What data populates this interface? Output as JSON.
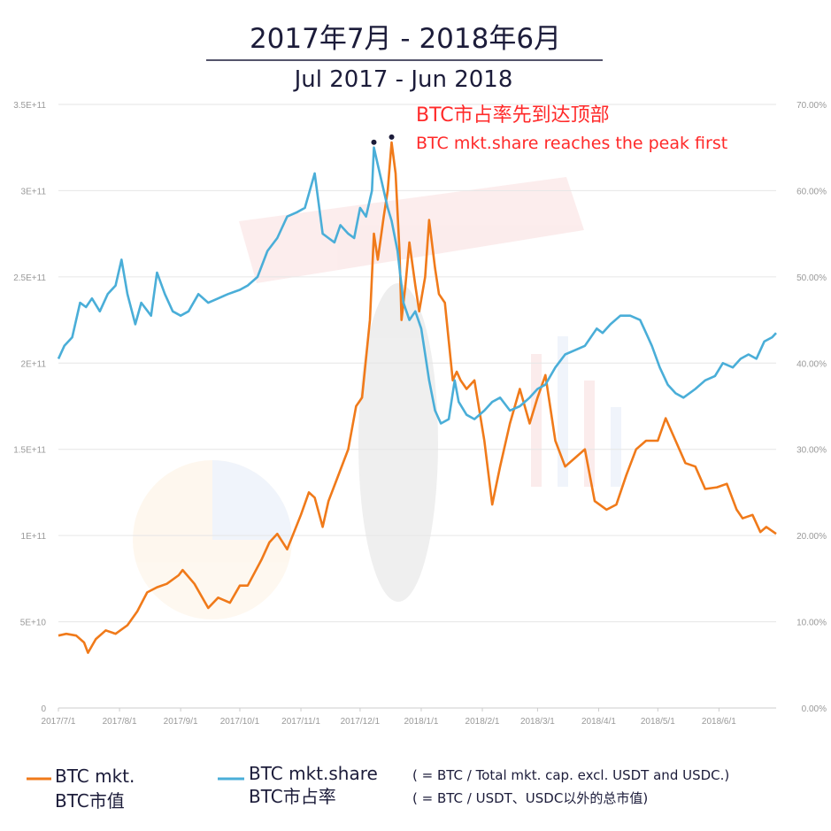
{
  "title": "2017年7月 - 2018年6月",
  "subtitle": "Jul 2017 - Jun 2018",
  "annotation": {
    "cn": "BTC市占率先到达顶部",
    "en": "BTC mkt.share reaches the peak first",
    "color": "#ff2a2a"
  },
  "legend": {
    "cap_line1": "BTC mkt.",
    "cap_line2": "BTC市值",
    "share_line1": "BTC mkt.share",
    "share_line2": "BTC市占率",
    "note_en": "( = BTC / Total mkt. cap. excl. USDT and USDC.)",
    "note_cn": "( = BTC / USDT、USDC以外的总市值)"
  },
  "colors": {
    "market_cap": "#f07a1a",
    "market_share": "#4aaed8",
    "grid": "#e6e6e6",
    "tick": "#999999",
    "title": "#1c1c3a"
  },
  "chart_data": {
    "type": "line",
    "x_range": [
      "2017-07-01",
      "2018-06-30"
    ],
    "x_ticks": [
      "2017/7/1",
      "2017/8/1",
      "2017/9/1",
      "2017/10/1",
      "2017/11/1",
      "2017/12/1",
      "2018/1/1",
      "2018/2/1",
      "2018/3/1",
      "2018/4/1",
      "2018/5/1",
      "2018/6/1"
    ],
    "y_left": {
      "range": [
        0,
        350000000000
      ],
      "ticks": [
        "0",
        "5E+10",
        "1E+11",
        "1.5E+11",
        "2E+11",
        "2.5E+11",
        "3E+11",
        "3.5E+11"
      ]
    },
    "y_right": {
      "range": [
        0,
        0.7
      ],
      "ticks": [
        "0.00%",
        "10.00%",
        "20.00%",
        "30.00%",
        "40.00%",
        "50.00%",
        "60.00%",
        "70.00%"
      ]
    },
    "grid": true,
    "series": [
      {
        "name": "BTC mkt.",
        "axis": "left",
        "points": [
          [
            "2017-07-01",
            42000000000
          ],
          [
            "2017-07-05",
            43000000000
          ],
          [
            "2017-07-10",
            42000000000
          ],
          [
            "2017-07-14",
            38000000000
          ],
          [
            "2017-07-16",
            32000000000
          ],
          [
            "2017-07-20",
            40000000000
          ],
          [
            "2017-07-25",
            45000000000
          ],
          [
            "2017-07-30",
            43000000000
          ],
          [
            "2017-08-05",
            48000000000
          ],
          [
            "2017-08-10",
            56000000000
          ],
          [
            "2017-08-15",
            67000000000
          ],
          [
            "2017-08-20",
            70000000000
          ],
          [
            "2017-08-25",
            72000000000
          ],
          [
            "2017-08-31",
            77000000000
          ],
          [
            "2017-09-02",
            80000000000
          ],
          [
            "2017-09-08",
            72000000000
          ],
          [
            "2017-09-15",
            58000000000
          ],
          [
            "2017-09-20",
            64000000000
          ],
          [
            "2017-09-26",
            61000000000
          ],
          [
            "2017-10-01",
            71000000000
          ],
          [
            "2017-10-05",
            71000000000
          ],
          [
            "2017-10-12",
            86000000000
          ],
          [
            "2017-10-16",
            96000000000
          ],
          [
            "2017-10-20",
            101000000000
          ],
          [
            "2017-10-25",
            92000000000
          ],
          [
            "2017-11-01",
            112000000000
          ],
          [
            "2017-11-05",
            125000000000
          ],
          [
            "2017-11-08",
            122000000000
          ],
          [
            "2017-11-12",
            105000000000
          ],
          [
            "2017-11-15",
            120000000000
          ],
          [
            "2017-11-20",
            135000000000
          ],
          [
            "2017-11-25",
            150000000000
          ],
          [
            "2017-11-29",
            175000000000
          ],
          [
            "2017-12-02",
            180000000000
          ],
          [
            "2017-12-06",
            225000000000
          ],
          [
            "2017-12-08",
            275000000000
          ],
          [
            "2017-12-10",
            260000000000
          ],
          [
            "2017-12-13",
            285000000000
          ],
          [
            "2017-12-15",
            300000000000
          ],
          [
            "2017-12-17",
            328000000000
          ],
          [
            "2017-12-19",
            310000000000
          ],
          [
            "2017-12-21",
            265000000000
          ],
          [
            "2017-12-22",
            225000000000
          ],
          [
            "2017-12-24",
            245000000000
          ],
          [
            "2017-12-26",
            270000000000
          ],
          [
            "2017-12-29",
            245000000000
          ],
          [
            "2017-12-31",
            230000000000
          ],
          [
            "2018-01-03",
            250000000000
          ],
          [
            "2018-01-05",
            283000000000
          ],
          [
            "2018-01-08",
            255000000000
          ],
          [
            "2018-01-10",
            240000000000
          ],
          [
            "2018-01-13",
            235000000000
          ],
          [
            "2018-01-17",
            190000000000
          ],
          [
            "2018-01-19",
            195000000000
          ],
          [
            "2018-01-21",
            190000000000
          ],
          [
            "2018-01-24",
            185000000000
          ],
          [
            "2018-01-28",
            190000000000
          ],
          [
            "2018-02-02",
            155000000000
          ],
          [
            "2018-02-06",
            118000000000
          ],
          [
            "2018-02-10",
            140000000000
          ],
          [
            "2018-02-15",
            165000000000
          ],
          [
            "2018-02-20",
            185000000000
          ],
          [
            "2018-02-25",
            165000000000
          ],
          [
            "2018-03-01",
            180000000000
          ],
          [
            "2018-03-05",
            193000000000
          ],
          [
            "2018-03-10",
            155000000000
          ],
          [
            "2018-03-15",
            140000000000
          ],
          [
            "2018-03-20",
            145000000000
          ],
          [
            "2018-03-25",
            150000000000
          ],
          [
            "2018-03-30",
            120000000000
          ],
          [
            "2018-04-05",
            115000000000
          ],
          [
            "2018-04-10",
            118000000000
          ],
          [
            "2018-04-15",
            135000000000
          ],
          [
            "2018-04-20",
            150000000000
          ],
          [
            "2018-04-25",
            155000000000
          ],
          [
            "2018-05-01",
            155000000000
          ],
          [
            "2018-05-05",
            168000000000
          ],
          [
            "2018-05-10",
            155000000000
          ],
          [
            "2018-05-15",
            142000000000
          ],
          [
            "2018-05-20",
            140000000000
          ],
          [
            "2018-05-25",
            127000000000
          ],
          [
            "2018-05-31",
            128000000000
          ],
          [
            "2018-06-05",
            130000000000
          ],
          [
            "2018-06-10",
            115000000000
          ],
          [
            "2018-06-13",
            110000000000
          ],
          [
            "2018-06-18",
            112000000000
          ],
          [
            "2018-06-22",
            102000000000
          ],
          [
            "2018-06-25",
            105000000000
          ],
          [
            "2018-06-30",
            101000000000
          ]
        ]
      },
      {
        "name": "BTC mkt.share",
        "axis": "right",
        "points": [
          [
            "2017-07-01",
            0.405
          ],
          [
            "2017-07-04",
            0.42
          ],
          [
            "2017-07-08",
            0.43
          ],
          [
            "2017-07-12",
            0.47
          ],
          [
            "2017-07-15",
            0.465
          ],
          [
            "2017-07-18",
            0.475
          ],
          [
            "2017-07-22",
            0.46
          ],
          [
            "2017-07-26",
            0.48
          ],
          [
            "2017-07-30",
            0.49
          ],
          [
            "2017-08-02",
            0.52
          ],
          [
            "2017-08-05",
            0.48
          ],
          [
            "2017-08-09",
            0.445
          ],
          [
            "2017-08-12",
            0.47
          ],
          [
            "2017-08-17",
            0.455
          ],
          [
            "2017-08-20",
            0.505
          ],
          [
            "2017-08-24",
            0.48
          ],
          [
            "2017-08-28",
            0.46
          ],
          [
            "2017-09-01",
            0.455
          ],
          [
            "2017-09-05",
            0.46
          ],
          [
            "2017-09-10",
            0.48
          ],
          [
            "2017-09-15",
            0.47
          ],
          [
            "2017-09-20",
            0.475
          ],
          [
            "2017-09-25",
            0.48
          ],
          [
            "2017-10-01",
            0.485
          ],
          [
            "2017-10-05",
            0.49
          ],
          [
            "2017-10-10",
            0.5
          ],
          [
            "2017-10-15",
            0.53
          ],
          [
            "2017-10-20",
            0.545
          ],
          [
            "2017-10-25",
            0.57
          ],
          [
            "2017-10-30",
            0.575
          ],
          [
            "2017-11-03",
            0.58
          ],
          [
            "2017-11-08",
            0.62
          ],
          [
            "2017-11-12",
            0.55
          ],
          [
            "2017-11-15",
            0.545
          ],
          [
            "2017-11-18",
            0.54
          ],
          [
            "2017-11-21",
            0.56
          ],
          [
            "2017-11-25",
            0.55
          ],
          [
            "2017-11-28",
            0.545
          ],
          [
            "2017-12-01",
            0.58
          ],
          [
            "2017-12-04",
            0.57
          ],
          [
            "2017-12-07",
            0.6
          ],
          [
            "2017-12-08",
            0.65
          ],
          [
            "2017-12-10",
            0.63
          ],
          [
            "2017-12-12",
            0.61
          ],
          [
            "2017-12-15",
            0.58
          ],
          [
            "2017-12-17",
            0.565
          ],
          [
            "2017-12-20",
            0.53
          ],
          [
            "2017-12-23",
            0.47
          ],
          [
            "2017-12-26",
            0.45
          ],
          [
            "2017-12-29",
            0.46
          ],
          [
            "2018-01-01",
            0.44
          ],
          [
            "2018-01-05",
            0.38
          ],
          [
            "2018-01-08",
            0.345
          ],
          [
            "2018-01-11",
            0.33
          ],
          [
            "2018-01-15",
            0.335
          ],
          [
            "2018-01-18",
            0.38
          ],
          [
            "2018-01-20",
            0.355
          ],
          [
            "2018-01-24",
            0.34
          ],
          [
            "2018-01-28",
            0.335
          ],
          [
            "2018-02-02",
            0.345
          ],
          [
            "2018-02-06",
            0.355
          ],
          [
            "2018-02-10",
            0.36
          ],
          [
            "2018-02-15",
            0.345
          ],
          [
            "2018-02-20",
            0.35
          ],
          [
            "2018-02-25",
            0.36
          ],
          [
            "2018-03-01",
            0.37
          ],
          [
            "2018-03-05",
            0.375
          ],
          [
            "2018-03-10",
            0.395
          ],
          [
            "2018-03-15",
            0.41
          ],
          [
            "2018-03-20",
            0.415
          ],
          [
            "2018-03-25",
            0.42
          ],
          [
            "2018-03-31",
            0.44
          ],
          [
            "2018-04-03",
            0.435
          ],
          [
            "2018-04-07",
            0.445
          ],
          [
            "2018-04-12",
            0.455
          ],
          [
            "2018-04-17",
            0.455
          ],
          [
            "2018-04-22",
            0.45
          ],
          [
            "2018-04-25",
            0.435
          ],
          [
            "2018-04-28",
            0.42
          ],
          [
            "2018-05-02",
            0.395
          ],
          [
            "2018-05-06",
            0.375
          ],
          [
            "2018-05-10",
            0.365
          ],
          [
            "2018-05-14",
            0.36
          ],
          [
            "2018-05-20",
            0.37
          ],
          [
            "2018-05-25",
            0.38
          ],
          [
            "2018-05-30",
            0.385
          ],
          [
            "2018-06-03",
            0.4
          ],
          [
            "2018-06-08",
            0.395
          ],
          [
            "2018-06-12",
            0.405
          ],
          [
            "2018-06-16",
            0.41
          ],
          [
            "2018-06-20",
            0.405
          ],
          [
            "2018-06-24",
            0.425
          ],
          [
            "2018-06-28",
            0.43
          ],
          [
            "2018-06-30",
            0.435
          ]
        ]
      }
    ]
  }
}
